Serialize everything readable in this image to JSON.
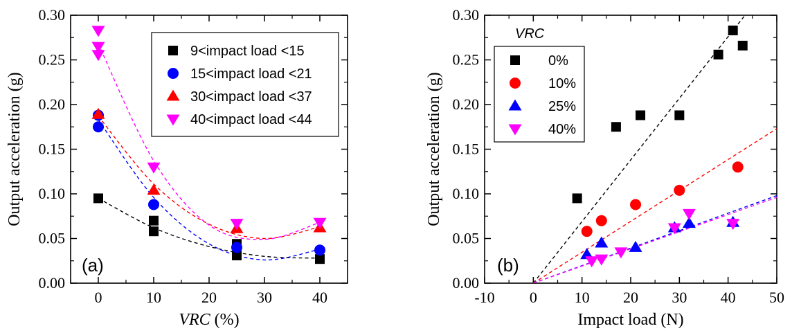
{
  "chart_data": [
    {
      "type": "scatter",
      "panel_label": "(a)",
      "xlabel_italic": "VRC",
      "xlabel_rest": " (%)",
      "ylabel": "Output acceleration (g)",
      "xlim": [
        -5,
        45
      ],
      "ylim": [
        0,
        0.3
      ],
      "xticks": [
        0,
        10,
        20,
        30,
        40
      ],
      "yticks": [
        0.0,
        0.05,
        0.1,
        0.15,
        0.2,
        0.25,
        0.3
      ],
      "ytick_labels": [
        "0.00",
        "0.05",
        "0.10",
        "0.15",
        "0.20",
        "0.25",
        "0.30"
      ],
      "legend_position": "top-right",
      "series": [
        {
          "name": "9<impact load <15",
          "marker": "square",
          "color": "#000000",
          "points": [
            [
              0,
              0.095
            ],
            [
              10,
              0.07
            ],
            [
              10,
              0.058
            ],
            [
              25,
              0.044
            ],
            [
              25,
              0.031
            ],
            [
              40,
              0.027
            ]
          ],
          "fit": [
            [
              0,
              0.095
            ],
            [
              10,
              0.062
            ],
            [
              20,
              0.041
            ],
            [
              30,
              0.03
            ],
            [
              40,
              0.028
            ]
          ]
        },
        {
          "name": "15<impact load <21",
          "marker": "circle",
          "color": "#0000ff",
          "points": [
            [
              0,
              0.188
            ],
            [
              0,
              0.175
            ],
            [
              10,
              0.088
            ],
            [
              25,
              0.04
            ],
            [
              40,
              0.037
            ]
          ],
          "fit": [
            [
              0,
              0.183
            ],
            [
              10,
              0.096
            ],
            [
              20,
              0.044
            ],
            [
              30,
              0.026
            ],
            [
              40,
              0.038
            ]
          ]
        },
        {
          "name": "30<impact load <37",
          "marker": "triangle-up",
          "color": "#ff0000",
          "points": [
            [
              0,
              0.189
            ],
            [
              10,
              0.104
            ],
            [
              25,
              0.061
            ],
            [
              40,
              0.062
            ]
          ],
          "fit": [
            [
              0,
              0.187
            ],
            [
              10,
              0.111
            ],
            [
              20,
              0.066
            ],
            [
              30,
              0.05
            ],
            [
              40,
              0.063
            ]
          ]
        },
        {
          "name": "40<impact load <44",
          "marker": "triangle-down",
          "color": "#ff00ff",
          "points": [
            [
              0,
              0.283
            ],
            [
              0,
              0.265
            ],
            [
              0,
              0.256
            ],
            [
              10,
              0.13
            ],
            [
              25,
              0.067
            ],
            [
              40,
              0.068
            ]
          ],
          "fit": [
            [
              0,
              0.268
            ],
            [
              10,
              0.137
            ],
            [
              20,
              0.065
            ],
            [
              30,
              0.049
            ],
            [
              40,
              0.068
            ]
          ]
        }
      ]
    },
    {
      "type": "scatter",
      "panel_label": "(b)",
      "xlabel": "Impact load (N)",
      "ylabel": "Output acceleration (g)",
      "xlim": [
        -10,
        50
      ],
      "ylim": [
        0,
        0.3
      ],
      "xticks": [
        -10,
        0,
        10,
        20,
        30,
        40,
        50
      ],
      "yticks": [
        0.0,
        0.05,
        0.1,
        0.15,
        0.2,
        0.25,
        0.3
      ],
      "ytick_labels": [
        "0.00",
        "0.05",
        "0.10",
        "0.15",
        "0.20",
        "0.25",
        "0.30"
      ],
      "legend_title": "VRC",
      "legend_position": "top-left",
      "series": [
        {
          "name": "0%",
          "marker": "square",
          "color": "#000000",
          "points": [
            [
              9,
              0.095
            ],
            [
              17,
              0.175
            ],
            [
              22,
              0.188
            ],
            [
              30,
              0.188
            ],
            [
              38,
              0.256
            ],
            [
              41,
              0.283
            ],
            [
              43,
              0.266
            ]
          ],
          "fit": [
            [
              0,
              0
            ],
            [
              50,
              0.345
            ]
          ]
        },
        {
          "name": "10%",
          "marker": "circle",
          "color": "#ff0000",
          "points": [
            [
              11,
              0.058
            ],
            [
              14,
              0.07
            ],
            [
              21,
              0.088
            ],
            [
              30,
              0.104
            ],
            [
              42,
              0.13
            ]
          ],
          "fit": [
            [
              0,
              0
            ],
            [
              50,
              0.173
            ]
          ]
        },
        {
          "name": "25%",
          "marker": "triangle-up",
          "color": "#0000ff",
          "points": [
            [
              11,
              0.032
            ],
            [
              14,
              0.045
            ],
            [
              21,
              0.04
            ],
            [
              29,
              0.062
            ],
            [
              32,
              0.067
            ],
            [
              41,
              0.068
            ]
          ],
          "fit": [
            [
              0,
              0
            ],
            [
              50,
              0.098
            ]
          ]
        },
        {
          "name": "40%",
          "marker": "triangle-down",
          "color": "#ff00ff",
          "points": [
            [
              12,
              0.025
            ],
            [
              14,
              0.027
            ],
            [
              18,
              0.035
            ],
            [
              29,
              0.062
            ],
            [
              32,
              0.078
            ],
            [
              41,
              0.067
            ]
          ],
          "fit": [
            [
              0,
              0
            ],
            [
              50,
              0.096
            ]
          ]
        }
      ]
    }
  ]
}
